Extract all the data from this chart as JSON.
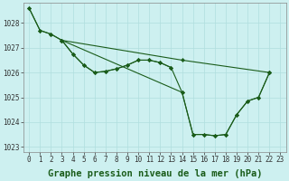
{
  "title": "Graphe pression niveau de la mer (hPa)",
  "background_color": "#cdf0f0",
  "grid_color": "#b0dede",
  "line_color": "#1a5c1a",
  "x_labels": [
    "0",
    "1",
    "2",
    "3",
    "4",
    "5",
    "6",
    "7",
    "8",
    "9",
    "10",
    "11",
    "12",
    "13",
    "14",
    "15",
    "16",
    "17",
    "18",
    "19",
    "20",
    "21",
    "22",
    "23"
  ],
  "ylim": [
    1022.8,
    1028.8
  ],
  "yticks": [
    1023,
    1024,
    1025,
    1026,
    1027,
    1028
  ],
  "tick_fontsize": 5.5,
  "title_fontsize": 7.5,
  "lines": [
    {
      "points": [
        [
          0,
          1028.6
        ],
        [
          1,
          1027.7
        ],
        [
          2,
          1027.55
        ],
        [
          3,
          1027.3
        ],
        [
          4,
          1026.75
        ],
        [
          5,
          1026.3
        ],
        [
          6,
          1026.0
        ],
        [
          7,
          1026.05
        ],
        [
          8,
          1026.15
        ],
        [
          9,
          1026.3
        ],
        [
          10,
          1026.5
        ],
        [
          11,
          1026.5
        ],
        [
          12,
          1026.4
        ],
        [
          13,
          1026.2
        ],
        [
          14,
          1025.2
        ],
        [
          15,
          1023.5
        ],
        [
          16,
          1023.5
        ],
        [
          17,
          1023.45
        ],
        [
          18,
          1023.5
        ],
        [
          19,
          1024.3
        ],
        [
          20,
          1024.85
        ],
        [
          21,
          1025.0
        ],
        [
          22,
          1026.0
        ]
      ]
    },
    {
      "points": [
        [
          0,
          1028.6
        ],
        [
          1,
          1027.7
        ],
        [
          2,
          1027.55
        ],
        [
          3,
          1027.3
        ],
        [
          4,
          1026.75
        ],
        [
          5,
          1026.3
        ],
        [
          6,
          1026.0
        ],
        [
          7,
          1026.05
        ],
        [
          8,
          1026.15
        ],
        [
          9,
          1026.3
        ],
        [
          10,
          1026.5
        ],
        [
          11,
          1026.5
        ],
        [
          12,
          1026.4
        ],
        [
          13,
          1026.2
        ]
      ]
    },
    {
      "points": [
        [
          3,
          1027.3
        ],
        [
          14,
          1026.5
        ],
        [
          22,
          1026.0
        ]
      ]
    },
    {
      "points": [
        [
          3,
          1027.3
        ],
        [
          14,
          1025.2
        ],
        [
          15,
          1023.5
        ],
        [
          16,
          1023.5
        ],
        [
          17,
          1023.45
        ],
        [
          18,
          1023.5
        ],
        [
          19,
          1024.3
        ],
        [
          20,
          1024.85
        ],
        [
          21,
          1025.0
        ],
        [
          22,
          1026.0
        ]
      ]
    }
  ]
}
